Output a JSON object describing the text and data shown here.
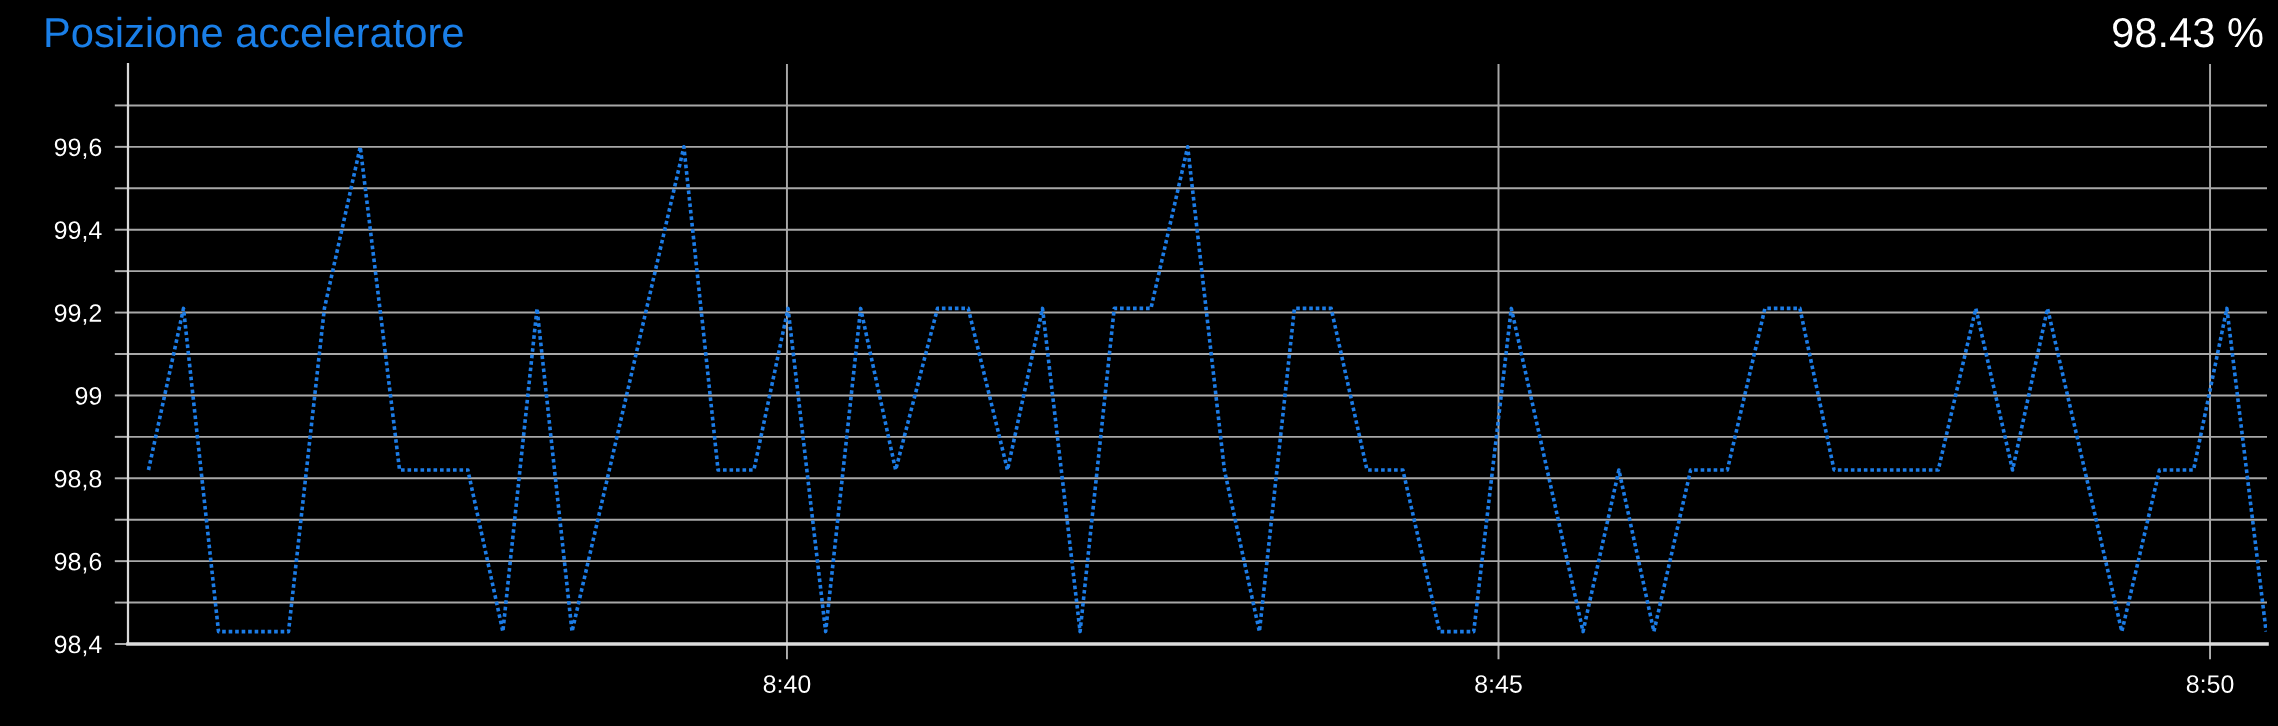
{
  "chart_data": {
    "type": "line",
    "title": "Posizione acceleratore",
    "annotations": [
      "98.43 %"
    ],
    "x": [
      8.5919,
      8.596,
      8.6001,
      8.6083,
      8.6125,
      8.6167,
      8.6213,
      8.6293,
      8.6334,
      8.6374,
      8.6415,
      8.6546,
      8.6586,
      8.6628,
      8.6668,
      8.6712,
      8.6753,
      8.6794,
      8.6843,
      8.6879,
      8.6925,
      8.6966,
      8.701,
      8.705,
      8.7093,
      8.7136,
      8.7179,
      8.722,
      8.7261,
      8.7304,
      8.7346,
      8.7388,
      8.7431,
      8.7471,
      8.7515,
      8.7599,
      8.7641,
      8.7682,
      8.7725,
      8.7768,
      8.7812,
      8.7853,
      8.7893,
      8.8015,
      8.8059,
      8.8102,
      8.8143,
      8.823,
      8.8274,
      8.8314,
      8.8353,
      8.8399
    ],
    "series": [
      {
        "color": "#1c7ce6",
        "values": [
          98.82,
          99.21,
          98.43,
          98.43,
          99.21,
          99.6,
          98.82,
          98.82,
          98.43,
          99.21,
          98.43,
          99.6,
          98.82,
          98.82,
          99.21,
          98.43,
          99.21,
          98.82,
          99.21,
          99.21,
          98.82,
          99.21,
          98.43,
          99.21,
          99.21,
          99.6,
          98.82,
          98.43,
          99.21,
          99.21,
          98.82,
          98.82,
          98.43,
          98.43,
          99.21,
          98.43,
          98.82,
          98.43,
          98.82,
          98.82,
          99.21,
          99.21,
          98.82,
          98.82,
          99.21,
          98.82,
          99.21,
          98.43,
          98.82,
          98.82,
          99.21,
          98.43
        ]
      }
    ],
    "xlim": [
      8.5895,
      8.84
    ],
    "ylim": [
      98.4,
      99.8
    ],
    "xticks": [
      {
        "value": 8.66667,
        "label": "8:40"
      },
      {
        "value": 8.75,
        "label": "8:45"
      },
      {
        "value": 8.83333,
        "label": "8:50"
      }
    ],
    "yticks": [
      {
        "value": 98.4,
        "label": "98,4"
      },
      {
        "value": 98.5,
        "label": null
      },
      {
        "value": 98.6,
        "label": "98,6"
      },
      {
        "value": 98.7,
        "label": null
      },
      {
        "value": 98.8,
        "label": "98,8"
      },
      {
        "value": 98.9,
        "label": null
      },
      99,
      {
        "value": 99.1,
        "label": null
      },
      {
        "value": 99.2,
        "label": "99,2"
      },
      {
        "value": 99.3,
        "label": null
      },
      {
        "value": 99.4,
        "label": "99,4"
      },
      {
        "value": 99.5,
        "label": null
      },
      {
        "value": 99.6,
        "label": "99,6"
      },
      {
        "value": 99.7,
        "label": null
      }
    ],
    "grid": true,
    "line_style": "dotted"
  }
}
